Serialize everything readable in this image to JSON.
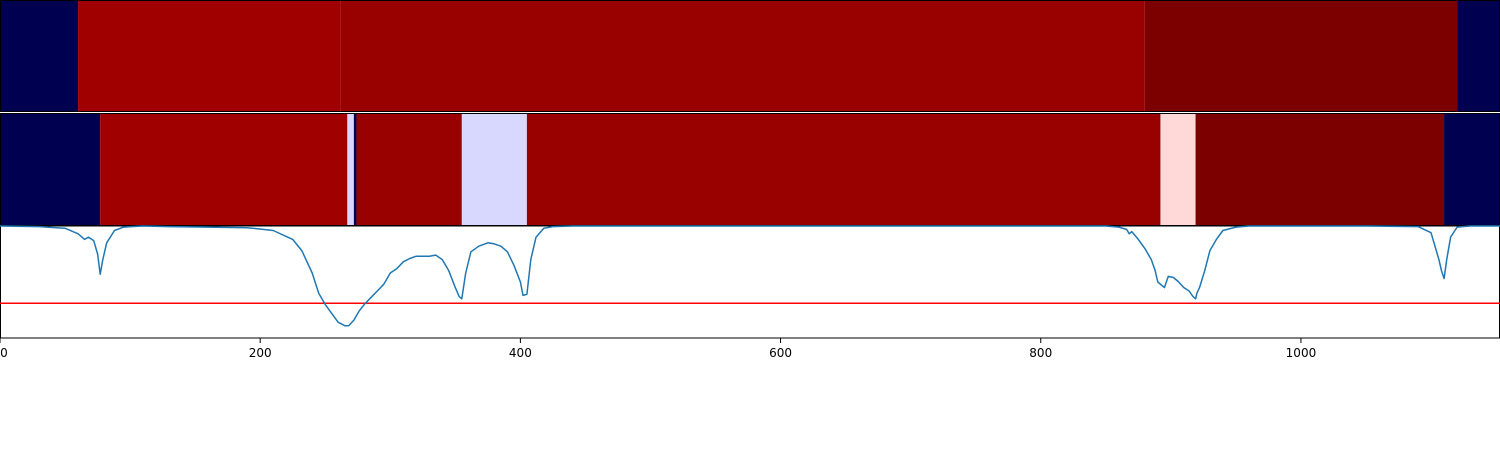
{
  "chart_data": {
    "type": "heatmap",
    "xlim": [
      0,
      1153
    ],
    "x_ticks": [
      "0",
      "200",
      "400",
      "600",
      "800",
      "1000"
    ],
    "x_tick_values": [
      0,
      200,
      400,
      600,
      800,
      1000
    ],
    "bands": [
      {
        "segments": [
          {
            "start": 0,
            "end": 60,
            "color": "#000050"
          },
          {
            "start": 60,
            "end": 262,
            "color": "#a00000"
          },
          {
            "start": 262,
            "end": 880,
            "color": "#990000"
          },
          {
            "start": 880,
            "end": 1120,
            "color": "#7c0000"
          },
          {
            "start": 1120,
            "end": 1153,
            "color": "#000050"
          }
        ]
      },
      {
        "segments": [
          {
            "start": 0,
            "end": 77,
            "color": "#000050"
          },
          {
            "start": 77,
            "end": 267,
            "color": "#a00000"
          },
          {
            "start": 267,
            "end": 272,
            "color": "#d8d8ff"
          },
          {
            "start": 272,
            "end": 274,
            "color": "#000050"
          },
          {
            "start": 274,
            "end": 355,
            "color": "#990000"
          },
          {
            "start": 355,
            "end": 405,
            "color": "#d8d8ff"
          },
          {
            "start": 405,
            "end": 892,
            "color": "#990000"
          },
          {
            "start": 892,
            "end": 919,
            "color": "#ffd8d8"
          },
          {
            "start": 919,
            "end": 1110,
            "color": "#7c0000"
          },
          {
            "start": 1110,
            "end": 1153,
            "color": "#000050"
          }
        ]
      }
    ],
    "line_panel": {
      "ylim": [
        0,
        1
      ],
      "threshold": 0.31,
      "threshold_color": "#ff0000",
      "line_color": "#1f77b4",
      "series": {
        "x": [
          0,
          30,
          50,
          60,
          65,
          68,
          72,
          75,
          77,
          79,
          82,
          88,
          95,
          110,
          130,
          160,
          190,
          210,
          225,
          232,
          236,
          240,
          245,
          250,
          255,
          260,
          265,
          268,
          272,
          276,
          280,
          285,
          290,
          295,
          300,
          305,
          310,
          315,
          320,
          330,
          335,
          340,
          345,
          350,
          353,
          355,
          358,
          362,
          368,
          375,
          380,
          385,
          390,
          395,
          400,
          402,
          405,
          408,
          412,
          418,
          425,
          440,
          480,
          550,
          700,
          850,
          860,
          866,
          868,
          870,
          875,
          880,
          885,
          888,
          890,
          895,
          898,
          902,
          906,
          910,
          914,
          917,
          919,
          920,
          922,
          926,
          930,
          935,
          940,
          950,
          960,
          1000,
          1050,
          1090,
          1100,
          1103,
          1106,
          1108,
          1110,
          1112,
          1115,
          1120,
          1130,
          1153
        ],
        "y": [
          1.0,
          0.995,
          0.98,
          0.93,
          0.88,
          0.9,
          0.87,
          0.75,
          0.57,
          0.7,
          0.85,
          0.96,
          0.99,
          1.0,
          0.995,
          0.99,
          0.985,
          0.96,
          0.88,
          0.78,
          0.68,
          0.58,
          0.4,
          0.3,
          0.22,
          0.14,
          0.11,
          0.11,
          0.16,
          0.24,
          0.3,
          0.36,
          0.42,
          0.48,
          0.58,
          0.62,
          0.68,
          0.71,
          0.73,
          0.73,
          0.74,
          0.7,
          0.6,
          0.45,
          0.37,
          0.35,
          0.58,
          0.77,
          0.82,
          0.85,
          0.84,
          0.82,
          0.77,
          0.65,
          0.5,
          0.38,
          0.39,
          0.7,
          0.9,
          0.98,
          0.995,
          1.0,
          1.0,
          1.0,
          1.0,
          1.0,
          0.99,
          0.97,
          0.93,
          0.95,
          0.88,
          0.8,
          0.7,
          0.6,
          0.5,
          0.45,
          0.55,
          0.54,
          0.5,
          0.45,
          0.42,
          0.37,
          0.35,
          0.4,
          0.45,
          0.6,
          0.78,
          0.88,
          0.96,
          0.99,
          1.0,
          1.0,
          1.0,
          0.995,
          0.94,
          0.82,
          0.7,
          0.6,
          0.53,
          0.7,
          0.9,
          0.99,
          1.0,
          1.0
        ]
      }
    }
  }
}
